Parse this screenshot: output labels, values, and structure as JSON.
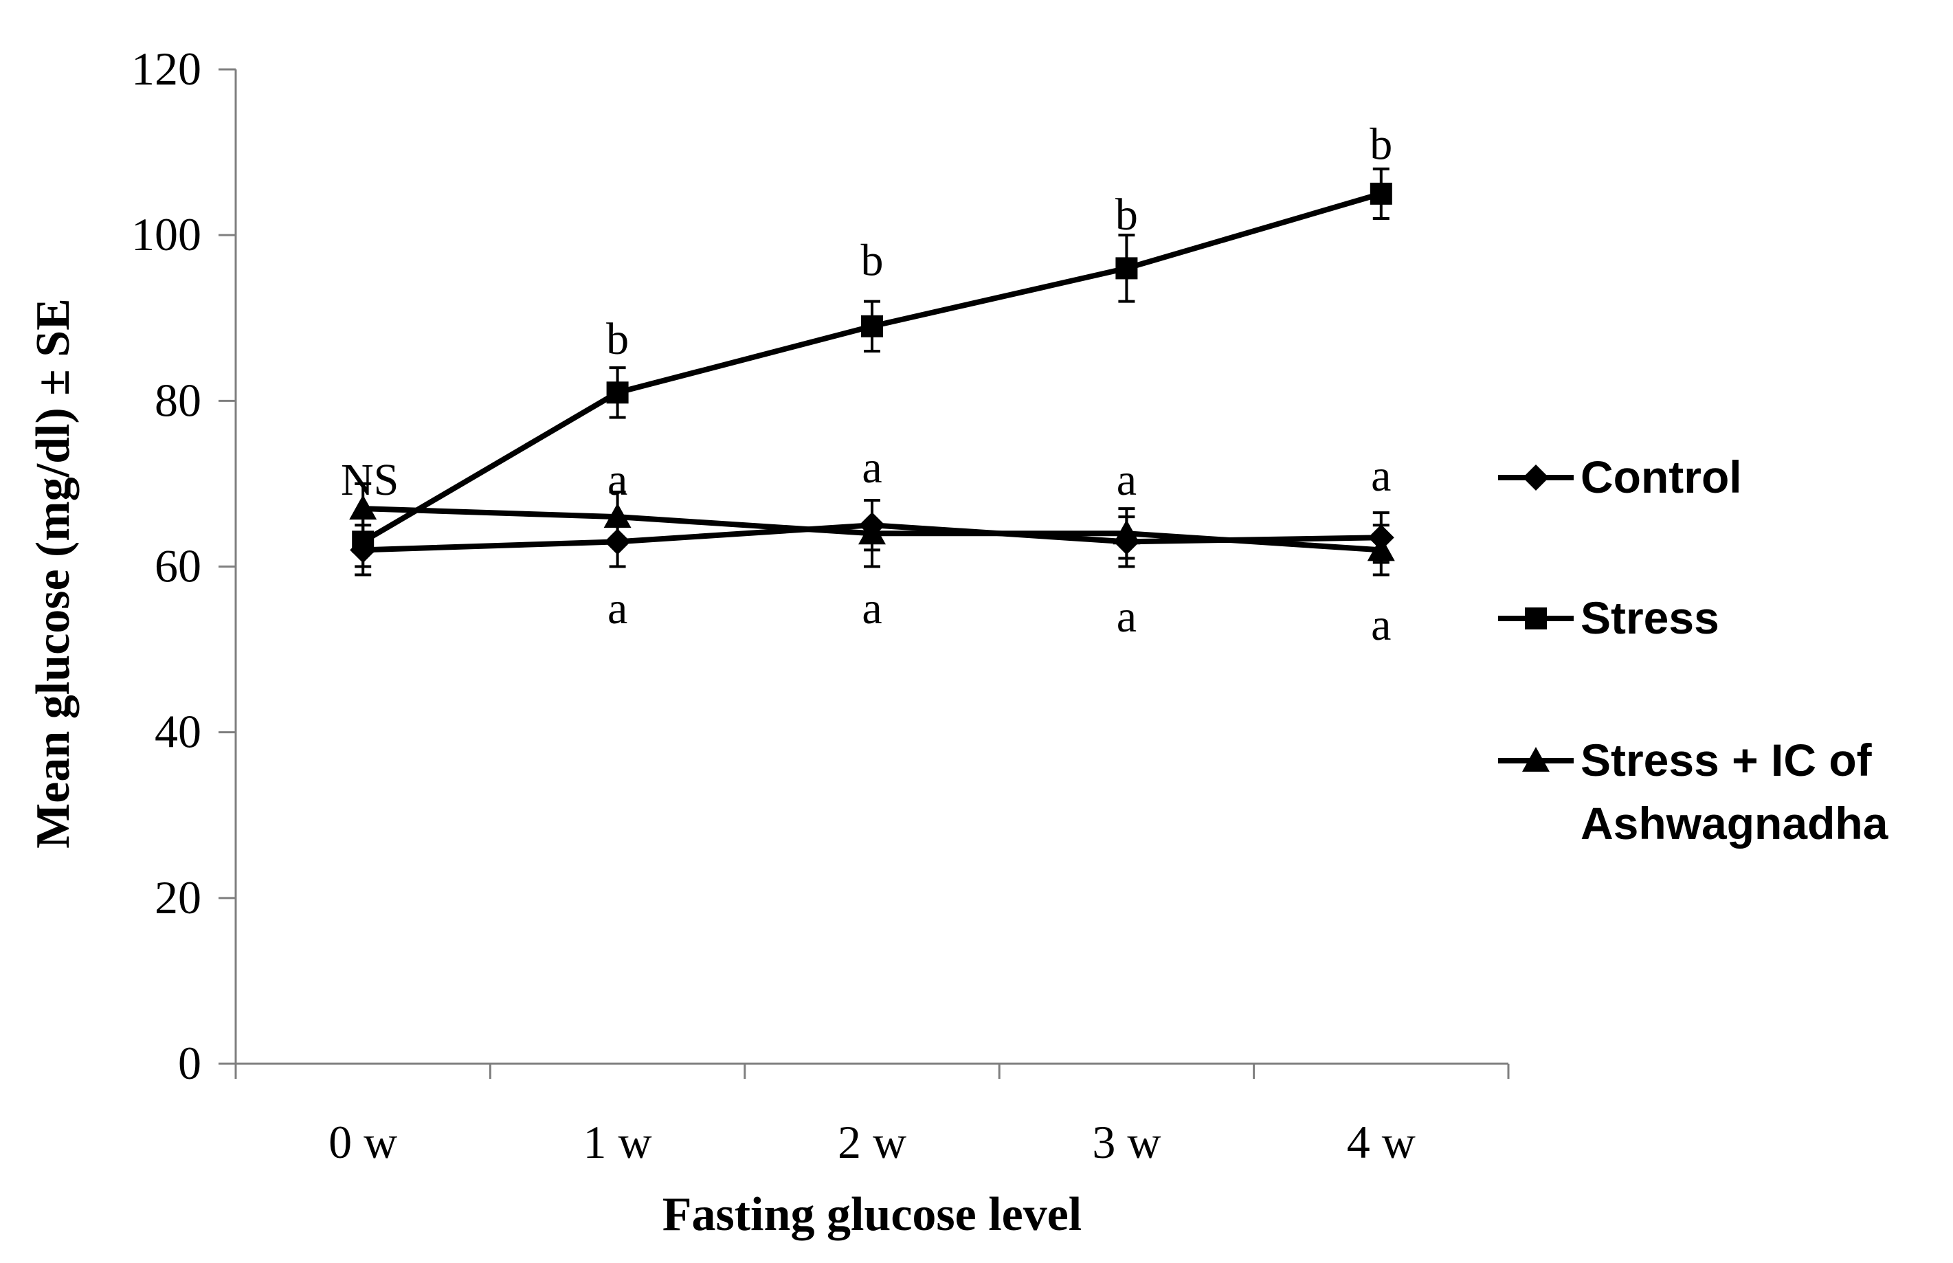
{
  "chart_data": {
    "type": "line",
    "title": "",
    "xlabel": "Fasting glucose level",
    "ylabel": "Mean glucose (mg/dl) ± SE",
    "categories": [
      "0 w",
      "1 w",
      "2 w",
      "3 w",
      "4 w"
    ],
    "ylim": [
      0,
      120
    ],
    "yticks": [
      0,
      20,
      40,
      60,
      80,
      100,
      120
    ],
    "grid": false,
    "legend_position": "right",
    "series": [
      {
        "name": "Control",
        "marker": "diamond",
        "values": [
          62,
          63,
          65,
          63,
          63.5
        ],
        "errors": [
          3,
          3,
          3,
          3,
          3
        ]
      },
      {
        "name": "Stress",
        "marker": "square",
        "values": [
          63,
          81,
          89,
          96,
          105
        ],
        "errors": [
          3,
          3,
          3,
          4,
          3
        ]
      },
      {
        "name": "Stress + IC of Ashwagnadha",
        "legend_lines": [
          "Stress + IC of",
          "Ashwagnadha"
        ],
        "marker": "triangle",
        "values": [
          67,
          66,
          64,
          64,
          62
        ],
        "errors": [
          3,
          3,
          4,
          3,
          3
        ]
      }
    ],
    "annotations": [
      {
        "text": "NS",
        "x": "0 w",
        "y": 70.5
      },
      {
        "text": "b",
        "x": "1 w",
        "y": 87.5
      },
      {
        "text": "a",
        "x": "1 w",
        "y": 70.5
      },
      {
        "text": "a",
        "x": "1 w",
        "y": 55
      },
      {
        "text": "b",
        "x": "2 w",
        "y": 97
      },
      {
        "text": "a",
        "x": "2 w",
        "y": 72
      },
      {
        "text": "a",
        "x": "2 w",
        "y": 55
      },
      {
        "text": "b",
        "x": "3 w",
        "y": 102.5
      },
      {
        "text": "a",
        "x": "3 w",
        "y": 70.5
      },
      {
        "text": "a",
        "x": "3 w",
        "y": 54
      },
      {
        "text": "b",
        "x": "4 w",
        "y": 111
      },
      {
        "text": "a",
        "x": "4 w",
        "y": 71
      },
      {
        "text": "a",
        "x": "4 w",
        "y": 53
      }
    ]
  }
}
